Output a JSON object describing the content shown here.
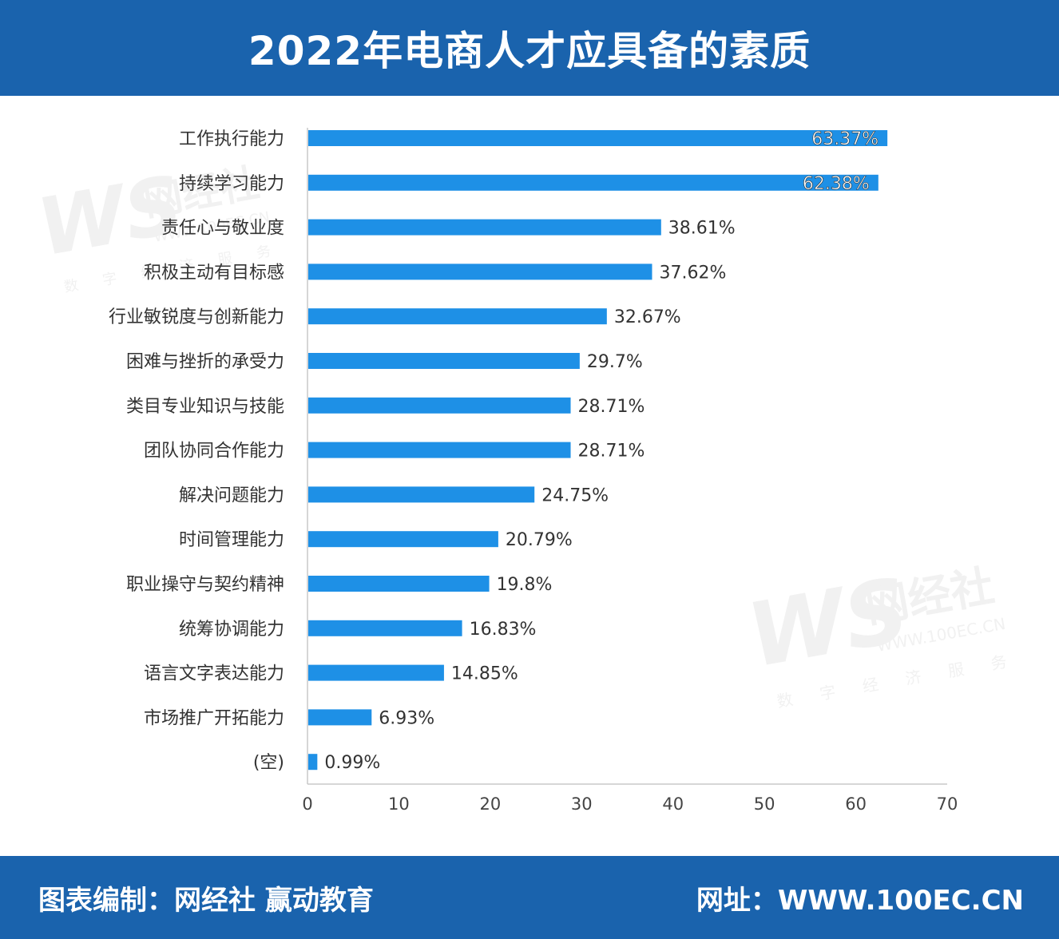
{
  "header": {
    "title": "2022年电商人才应具备的素质"
  },
  "footer": {
    "left": "图表编制：网经社 赢动教育",
    "right": "网址：WWW.100EC.CN"
  },
  "watermark": {
    "logo": "WS",
    "brand": "网经社",
    "url": "WWW.100EC.CN",
    "slogan": "数 字 经 济 服 务"
  },
  "colors": {
    "header_bg": "#1a63ad",
    "bar": "#1e90e6",
    "axis": "#c8c8c8",
    "watermark": "#e6e6e6"
  },
  "chart_data": {
    "type": "bar",
    "orientation": "horizontal",
    "categories": [
      "工作执行能力",
      "持续学习能力",
      "责任心与敬业度",
      "积极主动有目标感",
      "行业敏锐度与创新能力",
      "困难与挫折的承受力",
      "类目专业知识与技能",
      "团队协同合作能力",
      "解决问题能力",
      "时间管理能力",
      "职业操守与契约精神",
      "统筹协调能力",
      "语言文字表达能力",
      "市场推广开拓能力",
      "(空)"
    ],
    "values": [
      63.37,
      62.38,
      38.61,
      37.62,
      32.67,
      29.7,
      28.71,
      28.71,
      24.75,
      20.79,
      19.8,
      16.83,
      14.85,
      6.93,
      0.99
    ],
    "data_labels": [
      "63.37%",
      "62.38%",
      "38.61%",
      "37.62%",
      "32.67%",
      "29.7%",
      "28.71%",
      "28.71%",
      "24.75%",
      "20.79%",
      "19.8%",
      "16.83%",
      "14.85%",
      "6.93%",
      "0.99%"
    ],
    "xlim": [
      0,
      70
    ],
    "xticks": [
      0,
      10,
      20,
      30,
      40,
      50,
      60,
      70
    ],
    "grid": false,
    "legend": "none"
  }
}
